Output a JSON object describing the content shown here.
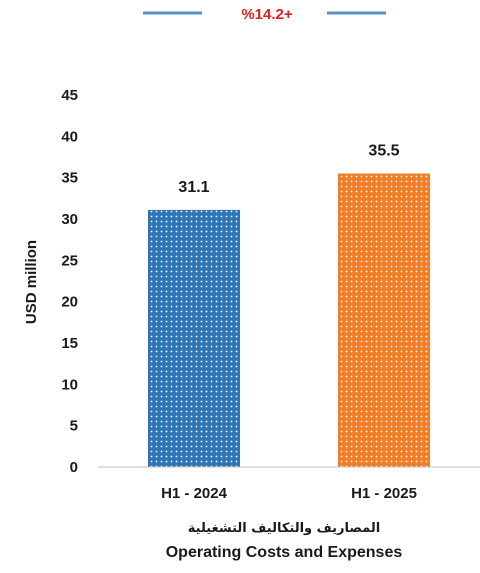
{
  "chart_data": {
    "type": "bar",
    "categories": [
      "H1 - 2024",
      "H1 - 2025"
    ],
    "values": [
      31.1,
      35.5
    ],
    "value_labels": [
      "31.1",
      "35.5"
    ],
    "bar_colors": [
      "#2e75b6",
      "#f07e26"
    ],
    "bar_pattern": "dotted",
    "ylabel": "USD million",
    "ylim": [
      0,
      45
    ],
    "yticks": [
      0,
      5,
      10,
      15,
      20,
      25,
      30,
      35,
      40,
      45
    ],
    "grid": false,
    "growth_annotation": "%14.2+",
    "growth_color": "#e02020",
    "title_ar": "المصاريف والتكاليف التشغيلية",
    "title_en": "Operating Costs and Expenses"
  }
}
